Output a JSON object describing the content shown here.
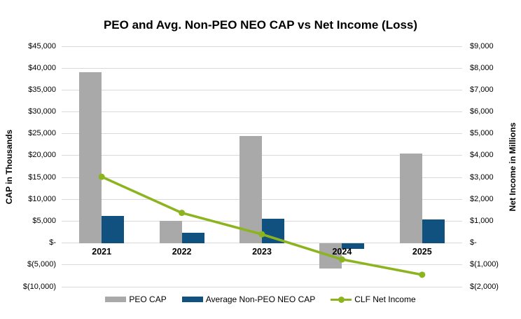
{
  "title": "PEO and Avg. Non-PEO NEO CAP vs Net Income (Loss)",
  "left_axis": {
    "title": "CAP in Thousands",
    "max": 45000,
    "min": -10000,
    "tick_values": [
      45000,
      40000,
      35000,
      30000,
      25000,
      20000,
      15000,
      10000,
      5000,
      0,
      -5000,
      -10000
    ],
    "tick_labels": [
      "$45,000",
      "$40,000",
      "$35,000",
      "$30,000",
      "$25,000",
      "$20,000",
      "$15,000",
      "$10,000",
      "$5,000",
      "$-",
      "$(5,000)",
      "$(10,000)"
    ]
  },
  "right_axis": {
    "title": "Net Income in Millions",
    "max": 9000,
    "min": -2000,
    "tick_values": [
      9000,
      8000,
      7000,
      6000,
      5000,
      4000,
      3000,
      2000,
      1000,
      0,
      -1000,
      -2000
    ],
    "tick_labels": [
      "$9,000",
      "$8,000",
      "$7,000",
      "$6,000",
      "$5,000",
      "$4,000",
      "$3,000",
      "$2,000",
      "$1,000",
      "$-",
      "$(1,000)",
      "$(2,000)"
    ]
  },
  "chart_data": {
    "type": "bar",
    "subtype": "combo-bar-line-dual-axis",
    "title": "PEO and Avg. Non-PEO NEO CAP vs Net Income (Loss)",
    "categories": [
      "2021",
      "2022",
      "2023",
      "2024",
      "2025"
    ],
    "series": [
      {
        "name": "PEO CAP",
        "type": "bar",
        "axis": "left",
        "color": "#a9a9a9",
        "values": [
          39000,
          5100,
          24400,
          -5800,
          20500
        ]
      },
      {
        "name": "Average Non-PEO NEO CAP",
        "type": "bar",
        "axis": "left",
        "color": "#10517f",
        "values": [
          6200,
          2300,
          5500,
          -1300,
          5400
        ]
      },
      {
        "name": "CLF Net Income",
        "type": "line",
        "axis": "right",
        "color": "#8cb41e",
        "values": [
          3030,
          1380,
          400,
          -750,
          -1450
        ]
      }
    ],
    "xlabel": "",
    "ylabel_left": "CAP in Thousands",
    "ylabel_right": "Net Income in Millions",
    "left_ylim": [
      -10000,
      45000
    ],
    "right_ylim": [
      -2000,
      9000
    ],
    "grid": true,
    "legend_position": "bottom"
  },
  "legend": {
    "items": [
      {
        "label": "PEO CAP",
        "swatch": "bar",
        "color": "#a9a9a9"
      },
      {
        "label": "Average Non-PEO NEO CAP",
        "swatch": "bar",
        "color": "#10517f"
      },
      {
        "label": "CLF Net Income",
        "swatch": "line",
        "color": "#8cb41e"
      }
    ]
  },
  "colors": {
    "grid": "#d9d9d9",
    "gray_bar": "#a9a9a9",
    "blue_bar": "#10517f",
    "green_line": "#8cb41e",
    "text": "#000000"
  }
}
